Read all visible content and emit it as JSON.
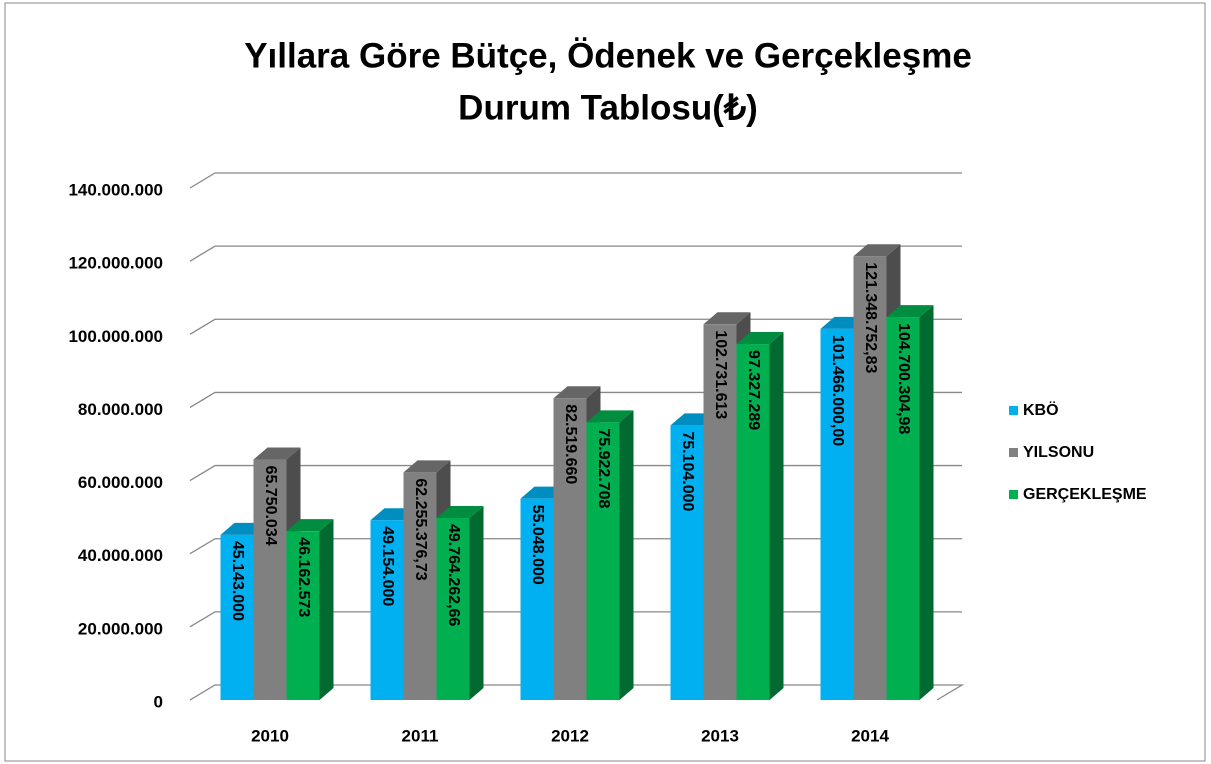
{
  "chart_data": {
    "type": "bar3d",
    "title": [
      "Yıllara Göre Bütçe, Ödenek ve Gerçekleşme",
      "Durum Tablosu(₺)"
    ],
    "categories": [
      "2010",
      "2011",
      "2012",
      "2013",
      "2014"
    ],
    "series": [
      {
        "name": "KBÖ",
        "color": "#00b0f0",
        "values": [
          45143000,
          49154000,
          55048000,
          75104000,
          101466000.0
        ],
        "value_labels": [
          "45.143.000",
          "49.154.000",
          "55.048.000",
          "75.104.000",
          "101.466.000,00"
        ]
      },
      {
        "name": "YILSONU",
        "color": "#808080",
        "values": [
          65750034,
          62255376.73,
          82519660,
          102731613,
          121348752.83
        ],
        "value_labels": [
          "65.750.034",
          "62.255.376,73",
          "82.519.660",
          "102.731.613",
          "121.348.752,83"
        ]
      },
      {
        "name": "GERÇEKLEŞME",
        "color": "#00b050",
        "values": [
          46162573,
          49764262.66,
          75922708,
          97327289,
          104700304.98
        ],
        "value_labels": [
          "46.162.573",
          "49.764.262,66",
          "75.922.708",
          "97.327.289",
          "104.700.304,98"
        ]
      }
    ],
    "ylim": [
      0,
      140000000
    ],
    "yticks": [
      0,
      {
        "value": 20000000,
        "label": "20.000.000"
      },
      {
        "value": 40000000,
        "label": "40.000.000"
      },
      {
        "value": 60000000,
        "label": "60.000.000"
      },
      {
        "value": 80000000,
        "label": "80.000.000"
      },
      {
        "value": 100000000,
        "label": "100.000.000"
      },
      {
        "value": 120000000,
        "label": "120.000.000"
      },
      {
        "value": 140000000,
        "label": "140.000.000"
      }
    ],
    "grid": true,
    "legend": "right"
  }
}
